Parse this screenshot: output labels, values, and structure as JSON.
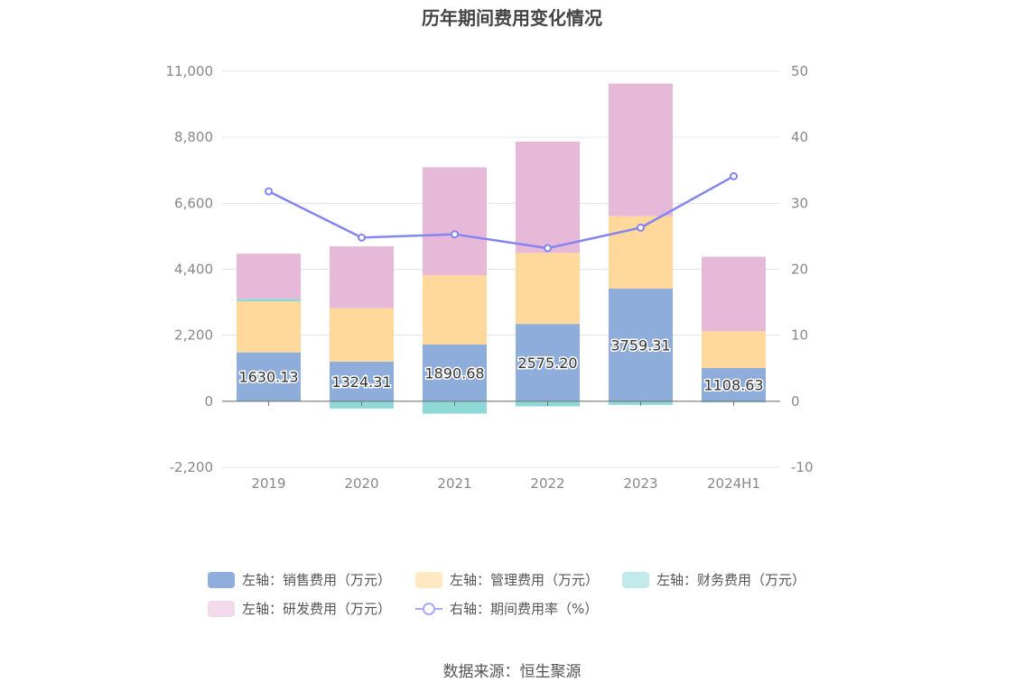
{
  "chart_data": {
    "type": "bar",
    "title": "历年期间费用变化情况",
    "categories": [
      "2019",
      "2020",
      "2021",
      "2022",
      "2023",
      "2024H1"
    ],
    "left_axis": {
      "range": [
        -2200,
        11000
      ],
      "ticks": [
        "-2,200",
        "0",
        "2,200",
        "4,400",
        "6,600",
        "8,800",
        "11,000"
      ]
    },
    "right_axis": {
      "range": [
        -10,
        50
      ],
      "ticks": [
        "-10",
        "0",
        "10",
        "20",
        "30",
        "40",
        "50"
      ]
    },
    "series": [
      {
        "name": "左轴：销售费用（万元）",
        "axis": "left",
        "kind": "bar",
        "color": "#8eaddb",
        "values": [
          1630.13,
          1324.31,
          1890.68,
          2575.2,
          3759.31,
          1108.63
        ],
        "labels": [
          "1630.13",
          "1324.31",
          "1890.68",
          "2575.20",
          "3759.31",
          "1108.63"
        ]
      },
      {
        "name": "左轴：管理费用（万元）",
        "axis": "left",
        "kind": "bar",
        "color": "#fed99b",
        "values": [
          1700,
          1780,
          2310,
          2370,
          2410,
          1230
        ]
      },
      {
        "name": "左轴：财务费用（万元）",
        "axis": "left",
        "kind": "bar",
        "color": "#8ed8d8",
        "values": [
          80,
          -240,
          -410,
          -170,
          -120,
          -40
        ]
      },
      {
        "name": "左轴：研发费用（万元）",
        "axis": "left",
        "kind": "bar",
        "color": "#e7b9d9",
        "values": [
          1510,
          2060,
          3600,
          3710,
          4420,
          2480
        ]
      },
      {
        "name": "右轴：期间费用率（%）",
        "axis": "right",
        "kind": "line",
        "color": "#8585ef",
        "values": [
          31.8,
          24.8,
          25.3,
          23.2,
          26.3,
          34.1
        ]
      }
    ],
    "legend_position": "bottom",
    "grid": true
  },
  "legend": {
    "items": [
      {
        "label": "左轴：销售费用（万元）",
        "color": "#8eaddb",
        "kind": "box"
      },
      {
        "label": "左轴：管理费用（万元）",
        "color": "#ffe8c2",
        "kind": "box"
      },
      {
        "label": "左轴：财务费用（万元）",
        "color": "#c3eaeb",
        "kind": "box"
      },
      {
        "label": "左轴：研发费用（万元）",
        "color": "#f3dbec",
        "kind": "box"
      },
      {
        "label": "右轴：期间费用率（%）",
        "color": "#a9a9f5",
        "kind": "line"
      }
    ]
  },
  "source": "数据来源：恒生聚源"
}
